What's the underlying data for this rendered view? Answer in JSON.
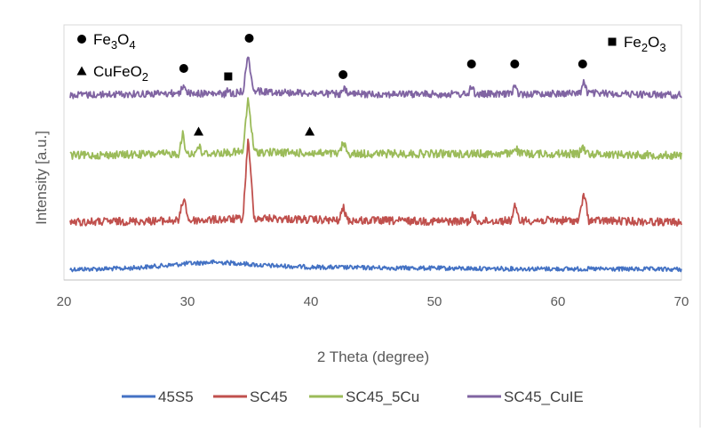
{
  "chart_data": {
    "type": "line",
    "title": "",
    "xlabel": "2 Theta (degree)",
    "ylabel": "Intensity [a.u.]",
    "xlim": [
      20,
      70
    ],
    "x_ticks": [
      "20",
      "30",
      "40",
      "50",
      "60",
      "70"
    ],
    "y_ticks": [],
    "grid": false,
    "legend_position": "bottom",
    "series": [
      {
        "name": "45S5",
        "color": "#4472C4",
        "points": [
          [
            20.5,
            0.0
          ],
          [
            25,
            0.2
          ],
          [
            28,
            0.8
          ],
          [
            30,
            1.3
          ],
          [
            32,
            1.6
          ],
          [
            34,
            1.4
          ],
          [
            36,
            0.9
          ],
          [
            40,
            0.5
          ],
          [
            45,
            0.35
          ],
          [
            50,
            0.25
          ],
          [
            55,
            0.15
          ],
          [
            60,
            0.1
          ],
          [
            65,
            0.05
          ],
          [
            70,
            0.0
          ]
        ]
      },
      {
        "name": "SC45",
        "color": "#C0504D",
        "points": [
          [
            20.5,
            0.0
          ],
          [
            29.3,
            0.2
          ],
          [
            29.7,
            3.0
          ],
          [
            30.1,
            0.2
          ],
          [
            34.5,
            0.4
          ],
          [
            34.9,
            10.0
          ],
          [
            35.4,
            0.5
          ],
          [
            42.3,
            0.2
          ],
          [
            42.6,
            1.8
          ],
          [
            43.0,
            0.2
          ],
          [
            52.8,
            0.1
          ],
          [
            53.1,
            0.8
          ],
          [
            53.5,
            0.1
          ],
          [
            56.2,
            0.2
          ],
          [
            56.5,
            1.8
          ],
          [
            56.9,
            0.2
          ],
          [
            61.7,
            0.2
          ],
          [
            62.1,
            3.5
          ],
          [
            62.5,
            0.2
          ],
          [
            70,
            0.0
          ]
        ]
      },
      {
        "name": "SC45_5Cu",
        "color": "#9BBB59",
        "points": [
          [
            20.5,
            0.0
          ],
          [
            29.3,
            0.2
          ],
          [
            29.6,
            2.5
          ],
          [
            29.9,
            0.3
          ],
          [
            30.6,
            0.2
          ],
          [
            30.9,
            1.2
          ],
          [
            31.2,
            0.2
          ],
          [
            34.5,
            0.4
          ],
          [
            34.9,
            6.5
          ],
          [
            35.4,
            0.4
          ],
          [
            42.3,
            0.2
          ],
          [
            42.6,
            1.5
          ],
          [
            43.0,
            0.2
          ],
          [
            56.2,
            0.2
          ],
          [
            56.5,
            1.0
          ],
          [
            56.9,
            0.2
          ],
          [
            61.7,
            0.2
          ],
          [
            62.0,
            1.0
          ],
          [
            62.4,
            0.2
          ],
          [
            70,
            0.0
          ]
        ]
      },
      {
        "name": "SC45_CuIE",
        "color": "#8064A2",
        "points": [
          [
            20.5,
            0.0
          ],
          [
            29.4,
            0.2
          ],
          [
            29.7,
            1.2
          ],
          [
            30.0,
            0.2
          ],
          [
            33.0,
            0.1
          ],
          [
            33.3,
            0.5
          ],
          [
            33.6,
            0.1
          ],
          [
            34.5,
            0.4
          ],
          [
            34.9,
            4.0
          ],
          [
            35.4,
            0.4
          ],
          [
            42.4,
            0.1
          ],
          [
            42.7,
            0.6
          ],
          [
            43.0,
            0.1
          ],
          [
            52.8,
            0.1
          ],
          [
            53.0,
            1.1
          ],
          [
            53.3,
            0.1
          ],
          [
            56.2,
            0.1
          ],
          [
            56.5,
            1.0
          ],
          [
            56.8,
            0.1
          ],
          [
            61.8,
            0.2
          ],
          [
            62.1,
            1.4
          ],
          [
            62.4,
            0.2
          ],
          [
            70,
            0.0
          ]
        ]
      }
    ],
    "annotations": [
      {
        "symbol": "circle",
        "text_main": "Fe",
        "sub1": "3",
        "text_mid": "O",
        "sub2": "4"
      },
      {
        "symbol": "triangle",
        "text_main": "CuFeO",
        "sub1": "2",
        "text_mid": "",
        "sub2": ""
      },
      {
        "symbol": "square",
        "text_main": "Fe",
        "sub1": "2",
        "text_mid": "O",
        "sub2": "3"
      }
    ],
    "peak_markers": [
      {
        "symbol": "circle",
        "x": 29.7
      },
      {
        "symbol": "circle",
        "x": 35.0
      },
      {
        "symbol": "circle",
        "x": 42.6
      },
      {
        "symbol": "circle",
        "x": 53.0
      },
      {
        "symbol": "circle",
        "x": 56.5
      },
      {
        "symbol": "circle",
        "x": 62.0
      },
      {
        "symbol": "square",
        "x": 33.3
      },
      {
        "symbol": "triangle",
        "x": 30.9
      },
      {
        "symbol": "triangle",
        "x": 39.9
      }
    ]
  }
}
